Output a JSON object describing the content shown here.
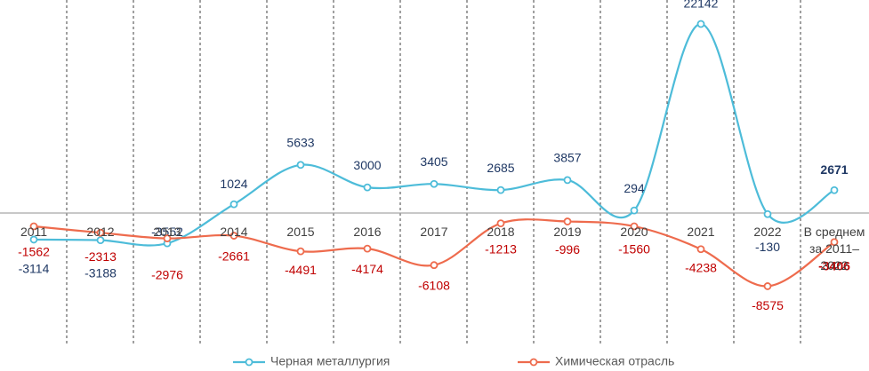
{
  "chart_data": {
    "type": "line",
    "categories": [
      "2011",
      "2012",
      "2013",
      "2014",
      "2015",
      "2016",
      "2017",
      "2018",
      "2019",
      "2020",
      "2021",
      "2022",
      "В среднем за 2011–2022"
    ],
    "series": [
      {
        "name": "Черная металлургия",
        "color": "#4dbcd9",
        "label_color": "#1f3864",
        "values": [
          -3114,
          -3188,
          -3552,
          1024,
          5633,
          3000,
          3405,
          2685,
          3857,
          294,
          22142,
          -130,
          2671
        ]
      },
      {
        "name": "Химическая отрасль",
        "color": "#ee6b4d",
        "label_color": "#c00000",
        "values": [
          -1562,
          -2313,
          -2976,
          -2661,
          -4491,
          -4174,
          -6108,
          -1213,
          -996,
          -1560,
          -4238,
          -8575,
          -3406
        ]
      }
    ],
    "ylim": [
      -15600,
      24950
    ]
  }
}
